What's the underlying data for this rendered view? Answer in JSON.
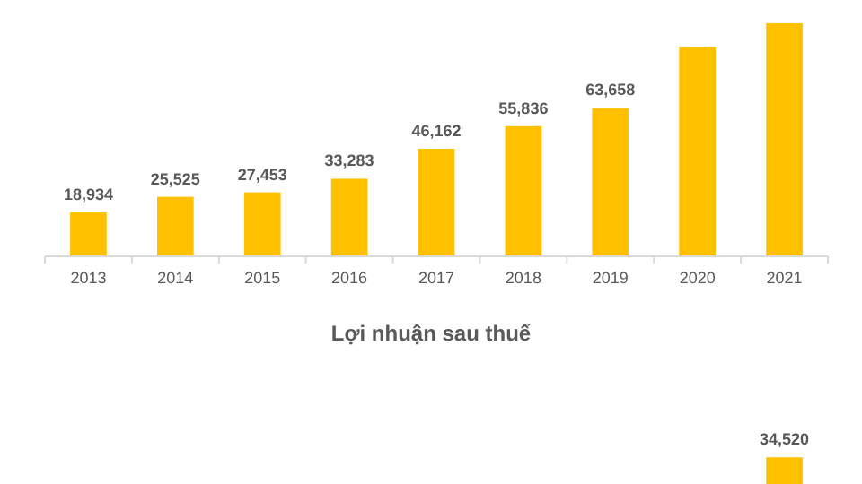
{
  "chart_data": [
    {
      "type": "bar",
      "categories": [
        "2013",
        "2014",
        "2015",
        "2016",
        "2017",
        "2018",
        "2019",
        "2020",
        "2021"
      ],
      "color": "#ffc000",
      "values": [
        18934,
        25525,
        27453,
        33283,
        46162,
        55836,
        63658,
        90000,
        100000
      ],
      "value_labels": [
        "18,934",
        "25,525",
        "27,453",
        "33,283",
        "46,162",
        "55,836",
        "63,658",
        null,
        null
      ]
    },
    {
      "type": "bar",
      "title": "Lợi nhuận sau thuế",
      "categories": [
        null,
        null,
        null,
        null,
        null,
        null,
        null,
        null,
        null
      ],
      "color": "#ffc000",
      "values": [
        null,
        null,
        null,
        null,
        null,
        null,
        null,
        null,
        34520
      ],
      "value_labels": [
        null,
        null,
        null,
        null,
        null,
        null,
        null,
        null,
        "34,520"
      ]
    }
  ]
}
